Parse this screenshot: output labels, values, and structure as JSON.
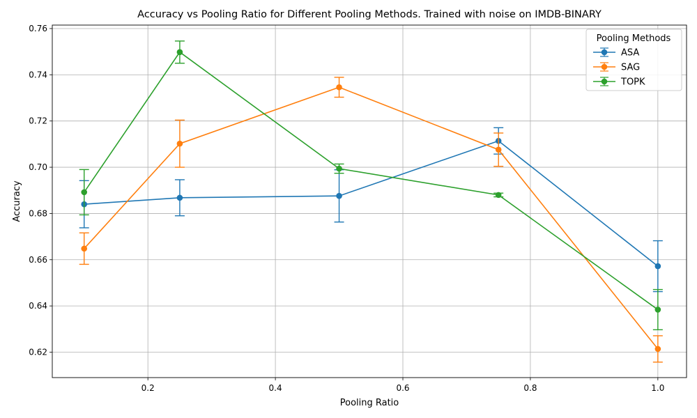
{
  "chart_data": {
    "type": "line",
    "title": "Accuracy vs Pooling Ratio for Different Pooling Methods. Trained with noise on IMDB-BINARY",
    "xlabel": "Pooling Ratio",
    "ylabel": "Accuracy",
    "xlim": [
      0.05,
      1.045
    ],
    "ylim": [
      0.609,
      0.7615
    ],
    "xticks": [
      0.2,
      0.4,
      0.6,
      0.8,
      1.0
    ],
    "xtick_labels": [
      "0.2",
      "0.4",
      "0.6",
      "0.8",
      "1.0"
    ],
    "yticks": [
      0.62,
      0.64,
      0.66,
      0.68,
      0.7,
      0.72,
      0.74,
      0.76
    ],
    "ytick_labels": [
      "0.62",
      "0.64",
      "0.66",
      "0.68",
      "0.70",
      "0.72",
      "0.74",
      "0.76"
    ],
    "grid": true,
    "legend": {
      "title": "Pooling Methods",
      "placement": "top-right"
    },
    "x": [
      0.1,
      0.25,
      0.5,
      0.75,
      1.0
    ],
    "series": [
      {
        "name": "ASA",
        "color": "#1f77b4",
        "values": [
          0.684,
          0.6868,
          0.6876,
          0.7114,
          0.6572
        ],
        "errors": [
          0.0102,
          0.0078,
          0.0113,
          0.0057,
          0.011
        ]
      },
      {
        "name": "SAG",
        "color": "#ff7f0e",
        "values": [
          0.6648,
          0.7102,
          0.7346,
          0.7076,
          0.6214
        ],
        "errors": [
          0.0068,
          0.0102,
          0.0043,
          0.0072,
          0.0057
        ]
      },
      {
        "name": "TOPK",
        "color": "#2ca02c",
        "values": [
          0.6892,
          0.7498,
          0.6994,
          0.688,
          0.6384
        ],
        "errors": [
          0.0098,
          0.0048,
          0.002,
          0.0008,
          0.0087
        ]
      }
    ]
  }
}
